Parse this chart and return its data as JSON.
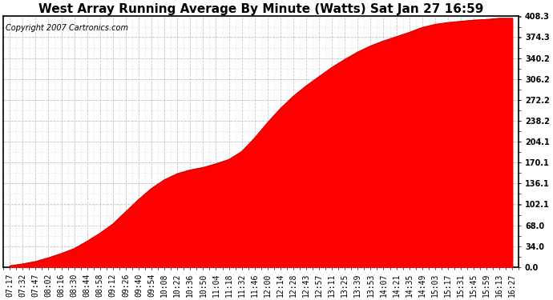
{
  "title": "West Array Running Average By Minute (Watts) Sat Jan 27 16:59",
  "copyright": "Copyright 2007 Cartronics.com",
  "yticks": [
    0.0,
    34.0,
    68.0,
    102.1,
    136.1,
    170.1,
    204.1,
    238.2,
    272.2,
    306.2,
    340.2,
    374.3,
    408.3
  ],
  "ymax": 408.3,
  "ymin": 0.0,
  "fill_color": "#ff0000",
  "line_color": "#cc0000",
  "background_color": "#ffffff",
  "grid_color": "#c8c8c8",
  "xtick_labels": [
    "07:17",
    "07:32",
    "07:47",
    "08:02",
    "08:16",
    "08:30",
    "08:44",
    "08:58",
    "09:12",
    "09:26",
    "09:40",
    "09:54",
    "10:08",
    "10:22",
    "10:36",
    "10:50",
    "11:04",
    "11:18",
    "11:32",
    "11:46",
    "12:00",
    "12:14",
    "12:28",
    "12:43",
    "12:57",
    "13:11",
    "13:25",
    "13:39",
    "13:53",
    "14:07",
    "14:21",
    "14:35",
    "14:49",
    "15:03",
    "15:17",
    "15:31",
    "15:45",
    "15:59",
    "16:13",
    "16:27"
  ],
  "values": [
    2,
    5,
    9,
    15,
    22,
    30,
    42,
    55,
    70,
    90,
    110,
    128,
    142,
    152,
    158,
    162,
    168,
    175,
    188,
    210,
    235,
    258,
    278,
    295,
    310,
    325,
    338,
    350,
    360,
    368,
    375,
    382,
    390,
    395,
    398,
    400,
    402,
    403,
    405,
    405
  ],
  "title_fontsize": 11,
  "tick_fontsize": 7,
  "copyright_fontsize": 7
}
